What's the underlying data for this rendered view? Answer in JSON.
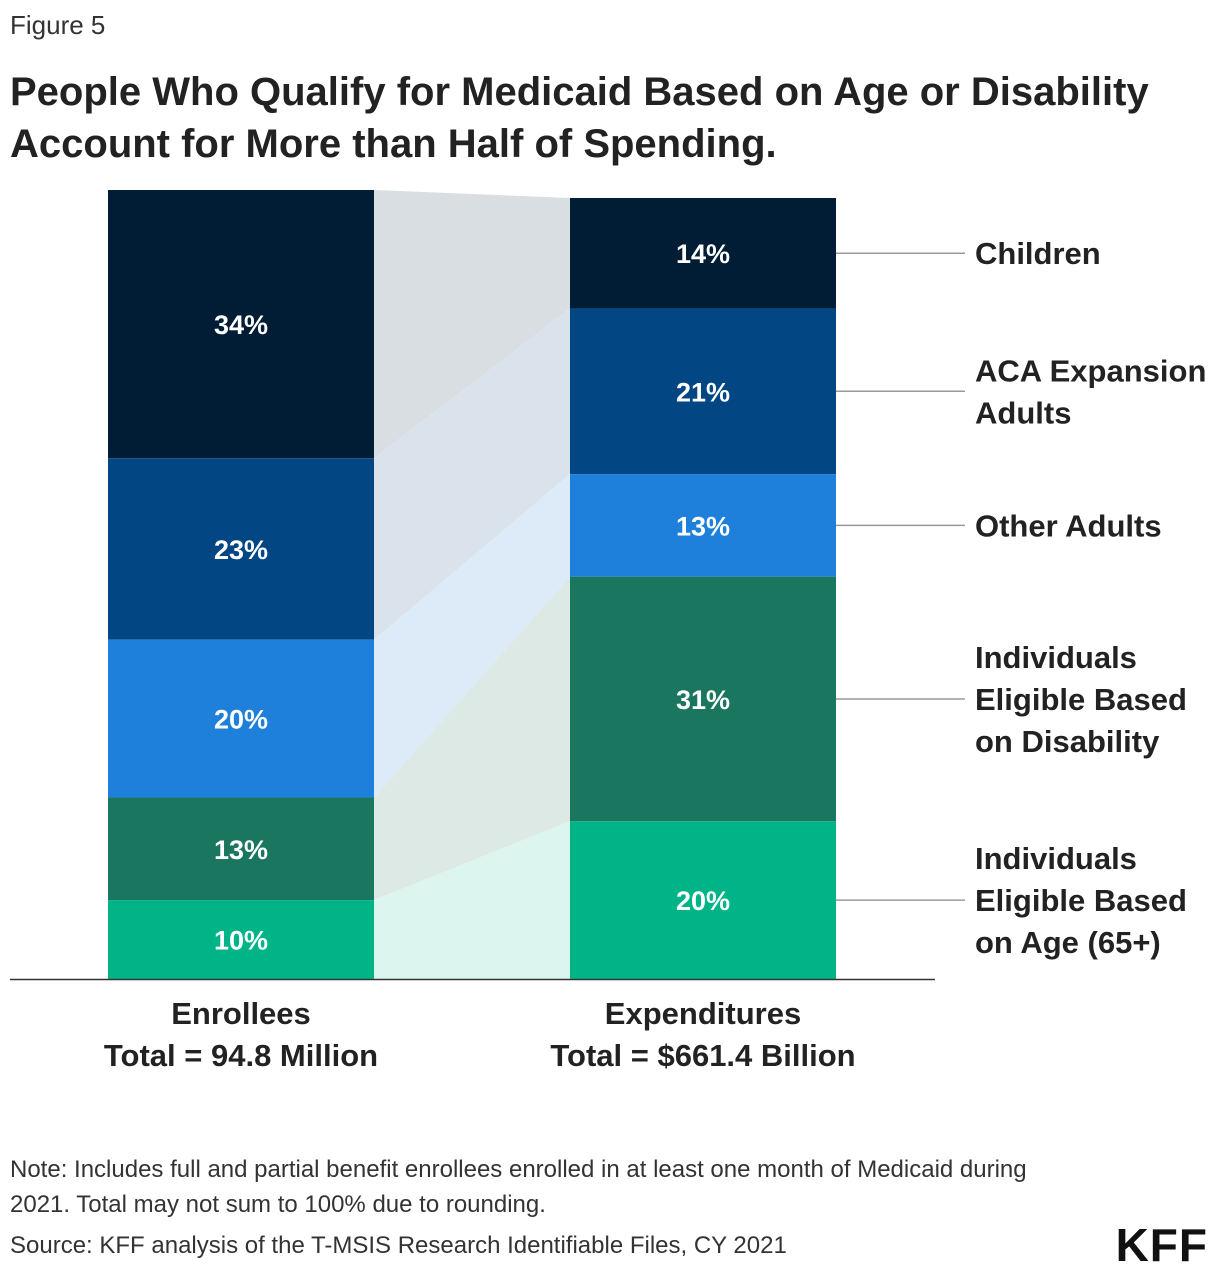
{
  "figure_label": "Figure 5",
  "title": "People Who Qualify for Medicaid Based on Age or Disability Account for More than Half of Spending.",
  "chart_data": {
    "type": "bar",
    "stacked": true,
    "categories": [
      "Enrollees",
      "Expenditures"
    ],
    "category_subtitles": [
      "Total = 94.8 Million",
      "Total = $661.4 Billion"
    ],
    "series": [
      {
        "name": "Children",
        "legend_lines": [
          "Children"
        ],
        "color": "#001D35",
        "band_color": "#D9DEE3",
        "values": [
          34,
          14
        ],
        "labels": [
          "34%",
          "14%"
        ]
      },
      {
        "name": "ACA Expansion Adults",
        "legend_lines": [
          "ACA Expansion",
          "Adults"
        ],
        "color": "#024683",
        "band_color": "#DAE3EC",
        "values": [
          23,
          21
        ],
        "labels": [
          "23%",
          "21%"
        ]
      },
      {
        "name": "Other Adults",
        "legend_lines": [
          "Other Adults"
        ],
        "color": "#1E80DA",
        "band_color": "#DDEBF8",
        "values": [
          20,
          13
        ],
        "labels": [
          "20%",
          "13%"
        ]
      },
      {
        "name": "Individuals Eligible Based on Disability",
        "legend_lines": [
          "Individuals",
          "Eligible Based",
          "on Disability"
        ],
        "color": "#1B765F",
        "band_color": "#DDE9E5",
        "values": [
          13,
          31
        ],
        "labels": [
          "13%",
          "31%"
        ]
      },
      {
        "name": "Individuals Eligible Based on Age (65+)",
        "legend_lines": [
          "Individuals",
          "Eligible Based",
          "on Age (65+)"
        ],
        "color": "#00B488",
        "band_color": "#DCF5EE",
        "values": [
          10,
          20
        ],
        "labels": [
          "10%",
          "20%"
        ]
      }
    ],
    "ylim": [
      0,
      100
    ],
    "legend_position": "right"
  },
  "footer": {
    "note": "Note: Includes full and partial benefit enrollees enrolled in at least one month of Medicaid during 2021. Total may not sum to 100% due to rounding.",
    "source": "Source: KFF analysis of the T-MSIS Research Identifiable Files, CY 2021",
    "logo": "KFF"
  }
}
